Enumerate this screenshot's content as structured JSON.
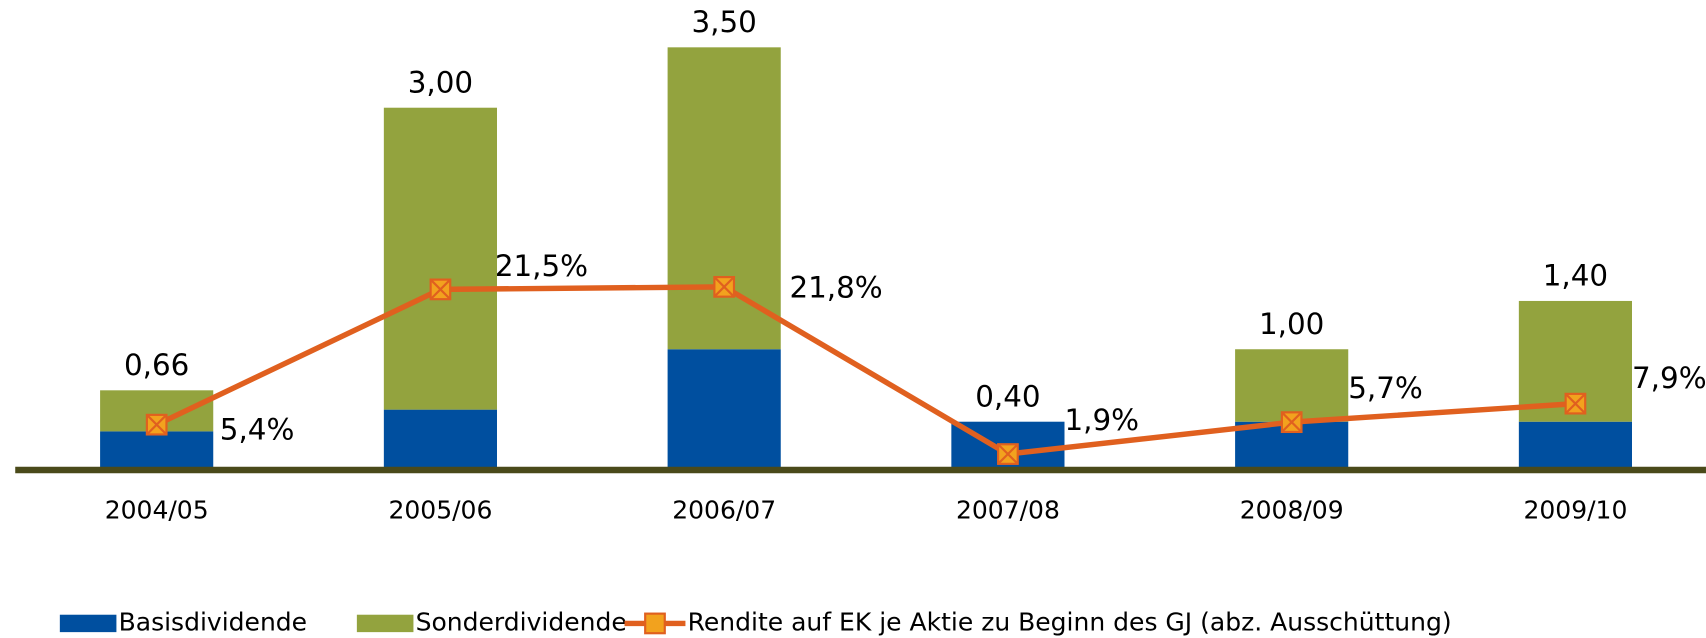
{
  "chart_data": {
    "type": "bar",
    "categories": [
      "2004/05",
      "2005/06",
      "2006/07",
      "2007/08",
      "2008/09",
      "2009/10"
    ],
    "series": [
      {
        "name": "Basisdividende",
        "color": "#004f9f",
        "values": [
          0.32,
          0.5,
          1.0,
          0.4,
          0.4,
          0.4
        ]
      },
      {
        "name": "Sonderdividende",
        "color": "#93a33e",
        "values": [
          0.34,
          2.5,
          2.5,
          0,
          0.6,
          1.0
        ]
      },
      {
        "name": "Rendite auf EK je Aktie zu Beginn des GJ (abz. Ausschüttung)",
        "type": "line",
        "axis": "y2",
        "color": "#e0601f",
        "values": [
          5.4,
          21.5,
          21.8,
          1.9,
          5.7,
          7.9
        ],
        "value_labels": [
          "5,4%",
          "21,5%",
          "21,8%",
          "1,9%",
          "5,7%",
          "7,9%"
        ]
      }
    ],
    "total_labels": [
      "0,66",
      "3,00",
      "3,50",
      "0,40",
      "1,00",
      "1,40"
    ],
    "stacked": true,
    "ylim": [
      0,
      4
    ],
    "y2lim": [
      0,
      57.5
    ]
  }
}
